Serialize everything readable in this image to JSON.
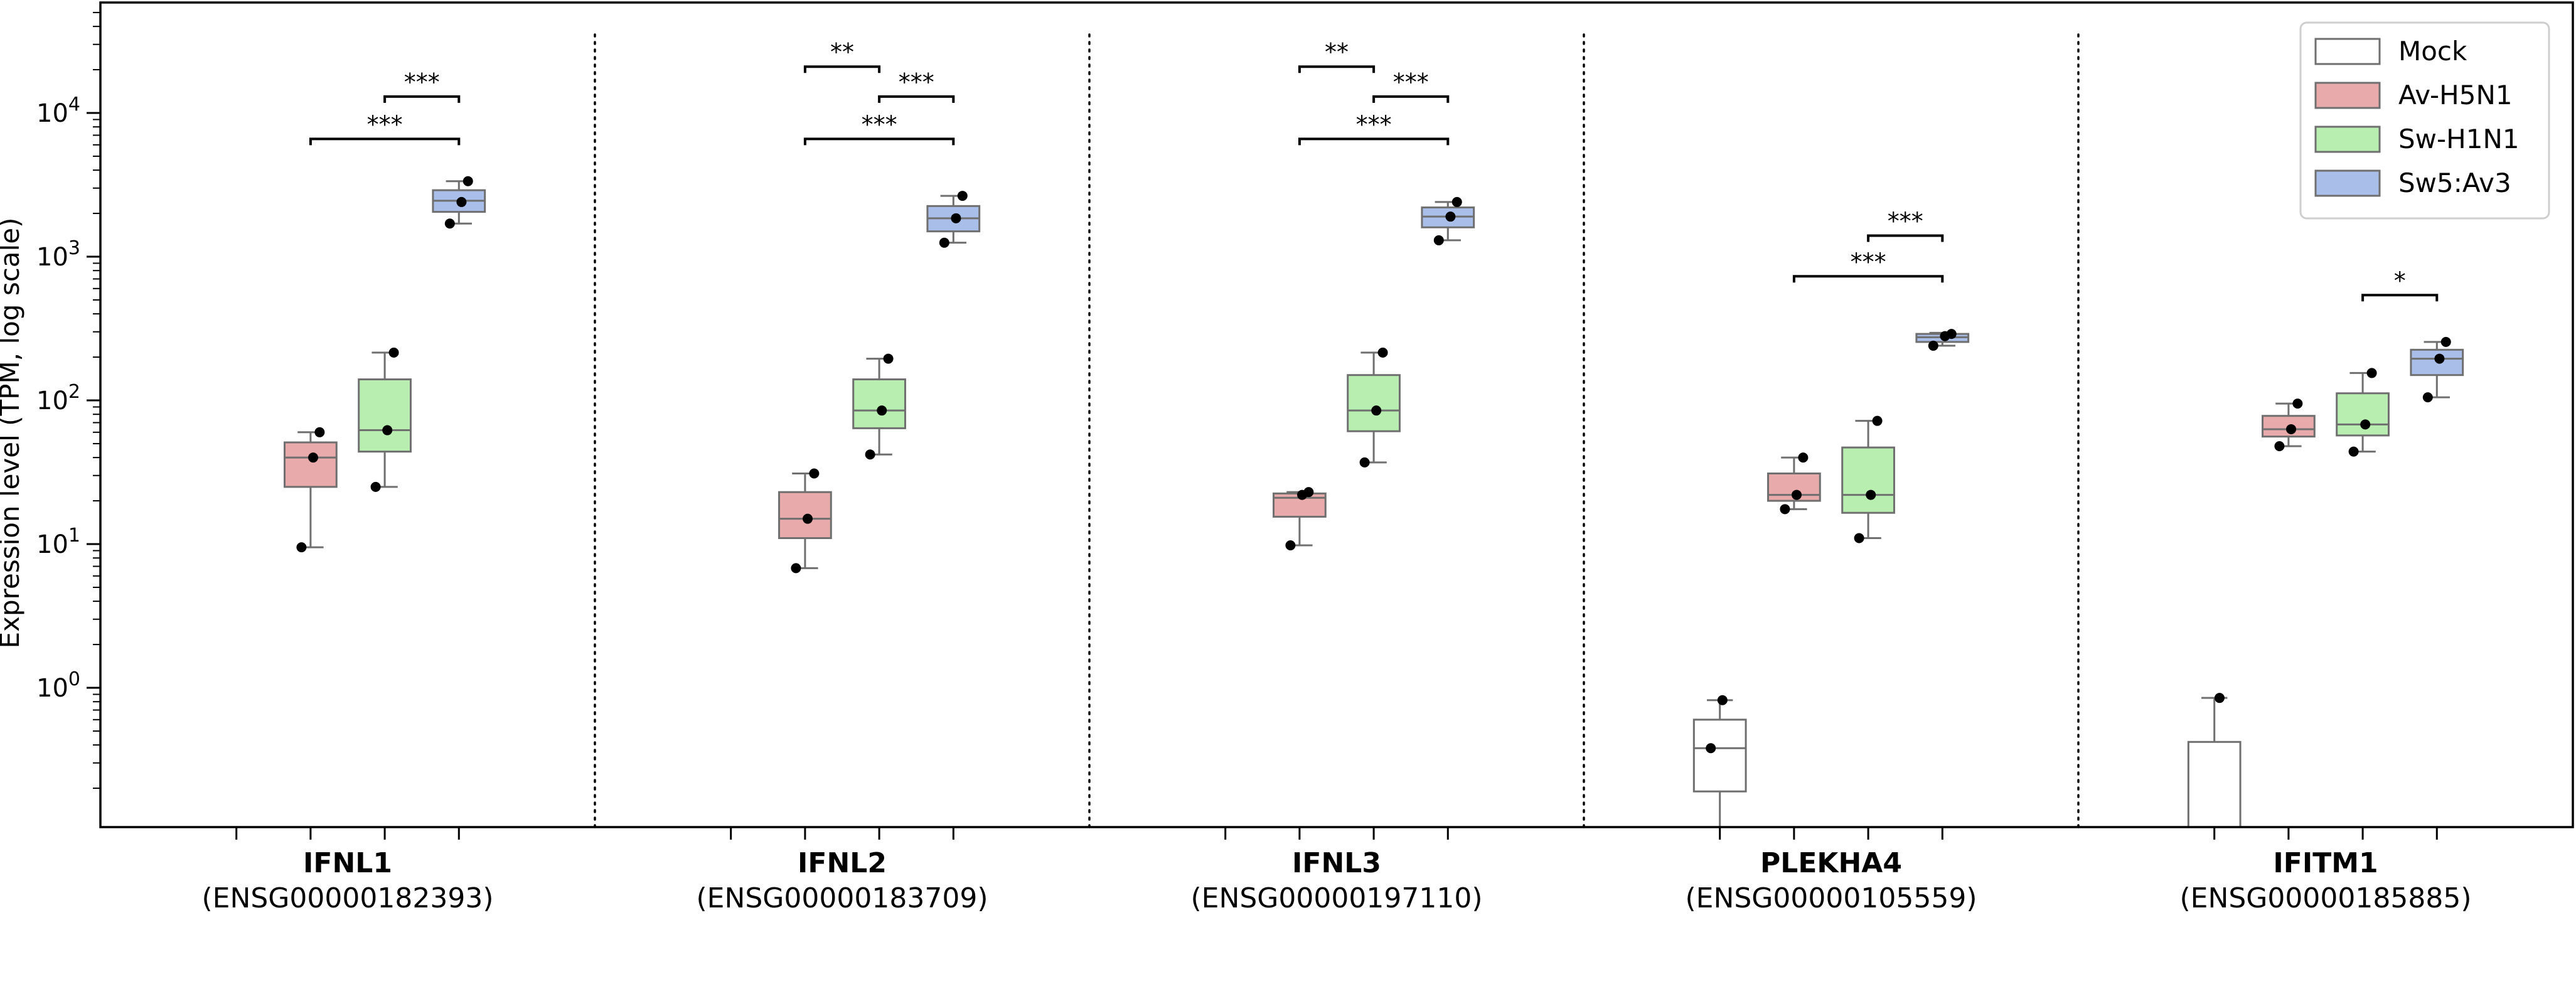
{
  "chart_data": {
    "type": "box",
    "ylabel": "Expression level (TPM, log scale)",
    "yscale": "log",
    "ylim": [
      0.1,
      50000
    ],
    "y_tick_labels": [
      {
        "value": 1,
        "base": "10",
        "exp": "0"
      },
      {
        "value": 10,
        "base": "10",
        "exp": "1"
      },
      {
        "value": 100,
        "base": "10",
        "exp": "2"
      },
      {
        "value": 1000,
        "base": "10",
        "exp": "3"
      },
      {
        "value": 10000,
        "base": "10",
        "exp": "4"
      }
    ],
    "legend_position": "top-right",
    "series": [
      {
        "name": "Mock",
        "color": "#ffffff"
      },
      {
        "name": "Av-H5N1",
        "color": "#e8aaaa"
      },
      {
        "name": "Sw-H1N1",
        "color": "#b8efb0"
      },
      {
        "name": "Sw5:Av3",
        "color": "#a9bfea"
      }
    ],
    "categories": [
      {
        "gene": "IFNL1",
        "ensembl": "(ENSG00000182393)",
        "boxes": [
          null,
          {
            "series": 1,
            "q1": 25,
            "median": 40,
            "q3": 51,
            "whisker_low": 9.5,
            "whisker_high": 60,
            "points": [
              9.5,
              40,
              60
            ]
          },
          {
            "series": 2,
            "q1": 44,
            "median": 62,
            "q3": 140,
            "whisker_low": 25,
            "whisker_high": 215,
            "points": [
              25,
              62,
              215
            ]
          },
          {
            "series": 3,
            "q1": 2050,
            "median": 2450,
            "q3": 2900,
            "whisker_low": 1700,
            "whisker_high": 3350,
            "points": [
              1700,
              2400,
              3350
            ]
          }
        ],
        "comparisons": [
          {
            "from": 2,
            "to": 3,
            "y": 13000,
            "label": "***"
          },
          {
            "from": 1,
            "to": 3,
            "y": 6600,
            "label": "***"
          }
        ]
      },
      {
        "gene": "IFNL2",
        "ensembl": "(ENSG00000183709)",
        "boxes": [
          null,
          {
            "series": 1,
            "q1": 11,
            "median": 15,
            "q3": 23,
            "whisker_low": 6.8,
            "whisker_high": 31,
            "points": [
              6.8,
              15,
              31
            ]
          },
          {
            "series": 2,
            "q1": 64,
            "median": 85,
            "q3": 140,
            "whisker_low": 42,
            "whisker_high": 195,
            "points": [
              42,
              85,
              195
            ]
          },
          {
            "series": 3,
            "q1": 1500,
            "median": 1850,
            "q3": 2250,
            "whisker_low": 1250,
            "whisker_high": 2650,
            "points": [
              1250,
              1850,
              2650
            ]
          }
        ],
        "comparisons": [
          {
            "from": 1,
            "to": 2,
            "y": 21000,
            "label": "**"
          },
          {
            "from": 2,
            "to": 3,
            "y": 13000,
            "label": "***"
          },
          {
            "from": 1,
            "to": 3,
            "y": 6600,
            "label": "***"
          }
        ]
      },
      {
        "gene": "IFNL3",
        "ensembl": "(ENSG00000197110)",
        "boxes": [
          null,
          {
            "series": 1,
            "q1": 15.5,
            "median": 21,
            "q3": 22.5,
            "whisker_low": 9.8,
            "whisker_high": 23,
            "points": [
              9.8,
              22,
              23
            ]
          },
          {
            "series": 2,
            "q1": 61,
            "median": 85,
            "q3": 150,
            "whisker_low": 37,
            "whisker_high": 215,
            "points": [
              37,
              85,
              215
            ]
          },
          {
            "series": 3,
            "q1": 1600,
            "median": 1900,
            "q3": 2200,
            "whisker_low": 1300,
            "whisker_high": 2400,
            "points": [
              1300,
              1900,
              2400
            ]
          }
        ],
        "comparisons": [
          {
            "from": 1,
            "to": 2,
            "y": 21000,
            "label": "**"
          },
          {
            "from": 2,
            "to": 3,
            "y": 13000,
            "label": "***"
          },
          {
            "from": 1,
            "to": 3,
            "y": 6600,
            "label": "***"
          }
        ]
      },
      {
        "gene": "PLEKHA4",
        "ensembl": "(ENSG00000105559)",
        "boxes": [
          {
            "series": 0,
            "q1": 0.19,
            "median": 0.38,
            "q3": 0.6,
            "whisker_low": 0.1,
            "whisker_high": 0.82,
            "points": [
              0.38,
              0.82
            ]
          },
          {
            "series": 1,
            "q1": 20,
            "median": 22,
            "q3": 31,
            "whisker_low": 17.5,
            "whisker_high": 40,
            "points": [
              17.5,
              22,
              40
            ]
          },
          {
            "series": 2,
            "q1": 16.5,
            "median": 22,
            "q3": 47,
            "whisker_low": 11,
            "whisker_high": 72,
            "points": [
              11,
              22,
              72
            ]
          },
          {
            "series": 3,
            "q1": 255,
            "median": 275,
            "q3": 290,
            "whisker_low": 240,
            "whisker_high": 295,
            "points": [
              240,
              280,
              290
            ]
          }
        ],
        "comparisons": [
          {
            "from": 2,
            "to": 3,
            "y": 1400,
            "label": "***"
          },
          {
            "from": 1,
            "to": 3,
            "y": 730,
            "label": "***"
          }
        ]
      },
      {
        "gene": "IFITM1",
        "ensembl": "(ENSG00000185885)",
        "boxes": [
          {
            "series": 0,
            "q1": 0.1,
            "median": 0.1,
            "q3": 0.42,
            "whisker_low": 0.1,
            "whisker_high": 0.85,
            "points": [
              0.85
            ]
          },
          {
            "series": 1,
            "q1": 56,
            "median": 63,
            "q3": 78,
            "whisker_low": 48,
            "whisker_high": 95,
            "points": [
              48,
              63,
              95
            ]
          },
          {
            "series": 2,
            "q1": 57,
            "median": 68,
            "q3": 112,
            "whisker_low": 44,
            "whisker_high": 155,
            "points": [
              44,
              68,
              155
            ]
          },
          {
            "series": 3,
            "q1": 150,
            "median": 195,
            "q3": 225,
            "whisker_low": 105,
            "whisker_high": 255,
            "points": [
              105,
              195,
              255
            ]
          }
        ],
        "comparisons": [
          {
            "from": 2,
            "to": 3,
            "y": 540,
            "label": "*"
          }
        ]
      }
    ]
  }
}
